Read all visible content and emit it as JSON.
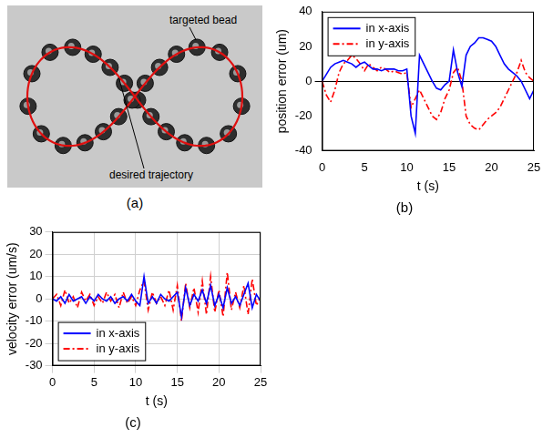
{
  "image": {
    "label": "(a)",
    "annotations": [
      "targeted bead",
      "desired trajectory"
    ]
  },
  "chart_data": [
    {
      "type": "line",
      "title": "(b)",
      "x_label": "t (s)",
      "y_label": "position error (um)",
      "x": [
        0,
        0.5,
        1,
        1.5,
        2,
        2.5,
        3,
        3.5,
        4,
        4.5,
        5,
        5.5,
        6,
        6.5,
        7,
        7.5,
        8,
        8.5,
        9,
        9.5,
        10,
        10.5,
        11,
        11.5,
        12,
        12.5,
        13,
        13.5,
        14,
        14.5,
        15,
        15.5,
        16,
        16.5,
        17,
        17.5,
        18,
        18.5,
        19,
        19.5,
        20,
        20.5,
        21,
        21.5,
        22,
        22.5,
        23,
        23.5,
        24,
        24.5,
        25
      ],
      "series": [
        {
          "name": "in x-axis",
          "color": "#0000ff",
          "line_style": "solid",
          "values": [
            0,
            4,
            8,
            10,
            11,
            12,
            11,
            10,
            8,
            10,
            11,
            9,
            7,
            7,
            6,
            7,
            7,
            7,
            6,
            6,
            7,
            -20,
            -30,
            15,
            10,
            5,
            0,
            -4,
            -5,
            -2,
            0,
            18,
            5,
            -3,
            15,
            20,
            22,
            25,
            25,
            24,
            23,
            20,
            15,
            10,
            7,
            5,
            3,
            0,
            -5,
            -10,
            -5
          ]
        },
        {
          "name": "in y-axis",
          "color": "#ff0000",
          "line_style": "dashdot",
          "values": [
            0,
            -8,
            -12,
            -5,
            5,
            10,
            12,
            15,
            13,
            10,
            6,
            10,
            8,
            6,
            8,
            7,
            5,
            6,
            5,
            4,
            5,
            -15,
            -10,
            -5,
            -10,
            -15,
            -20,
            -22,
            -18,
            -10,
            -5,
            5,
            8,
            0,
            -20,
            -25,
            -27,
            -28,
            -25,
            -22,
            -20,
            -18,
            -15,
            -10,
            -5,
            0,
            5,
            12,
            5,
            2,
            0
          ]
        }
      ],
      "xlim": [
        0,
        25
      ],
      "xticks": [
        0,
        5,
        10,
        15,
        20,
        25
      ],
      "ylim": [
        -40,
        40
      ],
      "yticks": [
        -40,
        -20,
        0,
        20,
        40
      ],
      "grid": false,
      "legend": "top-left"
    },
    {
      "type": "line",
      "title": "(c)",
      "x_label": "t (s)",
      "y_label": "velocity error (um/s)",
      "x": [
        0,
        0.5,
        1,
        1.5,
        2,
        2.5,
        3,
        3.5,
        4,
        4.5,
        5,
        5.5,
        6,
        6.5,
        7,
        7.5,
        8,
        8.5,
        9,
        9.5,
        10,
        10.5,
        11,
        11.5,
        12,
        12.5,
        13,
        13.5,
        14,
        14.5,
        15,
        15.5,
        16,
        16.5,
        17,
        17.5,
        18,
        18.5,
        19,
        19.5,
        20,
        20.5,
        21,
        21.5,
        22,
        22.5,
        23,
        23.5,
        24,
        24.5,
        25
      ],
      "series": [
        {
          "name": "in x-axis",
          "color": "#0000ff",
          "line_style": "solid",
          "values": [
            0,
            -1,
            1,
            -2,
            2,
            -1,
            0,
            1,
            -2,
            1,
            -1,
            2,
            0,
            -1,
            1,
            -2,
            0,
            1,
            -1,
            2,
            -1,
            -3,
            10,
            -2,
            1,
            -2,
            2,
            0,
            -1,
            1,
            3,
            -8,
            5,
            -3,
            2,
            -1,
            4,
            -2,
            6,
            -3,
            2,
            -4,
            5,
            -2,
            1,
            -3,
            2,
            7,
            -4,
            2,
            -1
          ]
        },
        {
          "name": "in y-axis",
          "color": "#ff0000",
          "line_style": "dashdot",
          "values": [
            0,
            2,
            -3,
            4,
            -2,
            1,
            -4,
            3,
            -1,
            2,
            -3,
            1,
            -2,
            3,
            -1,
            2,
            -4,
            3,
            -2,
            1,
            -3,
            4,
            8,
            -5,
            3,
            -2,
            1,
            -3,
            4,
            -5,
            6,
            -10,
            7,
            -4,
            5,
            -6,
            8,
            -7,
            10,
            -6,
            4,
            -8,
            12,
            -5,
            3,
            -4,
            6,
            -7,
            9,
            -3,
            1
          ]
        }
      ],
      "xlim": [
        0,
        25
      ],
      "xticks": [
        0,
        5,
        10,
        15,
        20,
        25
      ],
      "ylim": [
        -30,
        30
      ],
      "yticks": [
        -30,
        -20,
        -10,
        0,
        10,
        20,
        30
      ],
      "grid": true,
      "legend": "bottom-left"
    }
  ]
}
